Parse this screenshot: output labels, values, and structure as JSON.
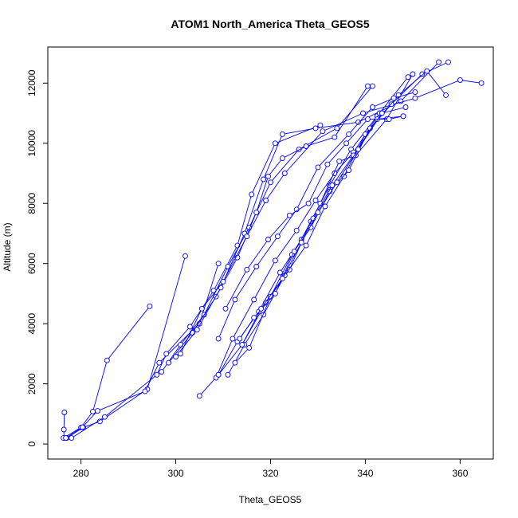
{
  "chart_data": {
    "type": "scatter",
    "title": "ATOM1 North_America Theta_GEOS5",
    "xlabel": "Theta_GEOS5",
    "ylabel": "Altitude (m)",
    "xlim": [
      273,
      367
    ],
    "ylim": [
      -500,
      13200
    ],
    "xticks": [
      280,
      300,
      320,
      340,
      360
    ],
    "yticks": [
      0,
      2000,
      4000,
      6000,
      8000,
      10000,
      12000
    ],
    "grid": false,
    "legend": "none",
    "color": "#0000ff",
    "marker": "open-circle",
    "lines": "connected",
    "series": [
      {
        "x": [
          276.5,
          276.4,
          276.4
        ],
        "y": [
          1050,
          480,
          200
        ]
      },
      {
        "x": [
          277.0,
          280.5,
          284.0,
          294.0,
          302.0
        ],
        "y": [
          200,
          550,
          750,
          1820,
          6250
        ]
      },
      {
        "x": [
          276.3,
          280.0,
          282.5,
          285.5,
          294.5
        ],
        "y": [
          200,
          550,
          1080,
          2780,
          4580
        ]
      },
      {
        "x": [
          276.8,
          280.3,
          283.5,
          293.5,
          296.5,
          305.0,
          309.0
        ],
        "y": [
          200,
          560,
          1100,
          1750,
          2700,
          4000,
          6000
        ]
      },
      {
        "x": [
          278.0,
          285.0,
          296.0,
          298.0,
          303.0,
          308.0,
          313.0,
          316.0,
          321.0,
          330.5
        ],
        "y": [
          200,
          900,
          2300,
          3000,
          3900,
          5100,
          6600,
          8300,
          10000,
          10600
        ]
      },
      {
        "x": [
          297.0,
          301.0,
          306.0,
          311.0,
          315.5,
          320.0,
          326.0,
          334.0,
          341.5
        ],
        "y": [
          2400,
          3300,
          4300,
          5900,
          7200,
          8700,
          9800,
          10500,
          11900
        ]
      },
      {
        "x": [
          298.5,
          303.5,
          308.5,
          313.0,
          317.0,
          319.5,
          322.5,
          327.5,
          333.5,
          340.5
        ],
        "y": [
          2700,
          3700,
          4900,
          6200,
          7700,
          8900,
          9500,
          9900,
          10200,
          11900
        ]
      },
      {
        "x": [
          300.0,
          304.5,
          309.5,
          314.5,
          318.5,
          322.5,
          329.5,
          338.5,
          347.5,
          355.5
        ],
        "y": [
          2900,
          3800,
          5200,
          7000,
          8800,
          10300,
          10500,
          10700,
          11400,
          12700
        ]
      },
      {
        "x": [
          301.0,
          305.5,
          310.0,
          315.0,
          319.0,
          323.0,
          331.0,
          339.5,
          350.5,
          360.0,
          364.5
        ],
        "y": [
          3000,
          4500,
          5400,
          6900,
          8100,
          9000,
          10400,
          11000,
          11500,
          12100,
          12000
        ]
      },
      {
        "x": [
          305.0,
          309.0,
          314.0,
          319.0,
          324.0,
          328.5,
          332.5,
          337.0,
          342.5,
          349.0
        ],
        "y": [
          1600,
          2300,
          3300,
          4700,
          5800,
          7400,
          8600,
          9800,
          10900,
          12200
        ]
      },
      {
        "x": [
          308.5,
          312.0,
          316.5,
          321.0,
          325.5,
          329.5,
          333.5,
          337.5,
          343.0
        ],
        "y": [
          2200,
          3500,
          4800,
          6100,
          7100,
          8100,
          9000,
          9700,
          11000
        ]
      },
      {
        "x": [
          309.0,
          313.0,
          317.5,
          322.0,
          326.5,
          330.5,
          334.5,
          338.0,
          344.5,
          350.0
        ],
        "y": [
          2300,
          3400,
          4400,
          5700,
          6800,
          8000,
          9400,
          9600,
          10800,
          12300
        ]
      },
      {
        "x": [
          311.0,
          314.5,
          318.5,
          323.0,
          327.5,
          331.5,
          335.5,
          340.0,
          345.5,
          352.0,
          357.5
        ],
        "y": [
          2300,
          3300,
          4300,
          5600,
          6600,
          7900,
          8900,
          10300,
          11300,
          12300,
          12700
        ]
      },
      {
        "x": [
          312.5,
          315.5,
          320.0,
          324.5,
          328.5,
          332.5,
          336.5,
          341.0,
          347.0,
          353.0,
          357.0
        ],
        "y": [
          2700,
          3200,
          4900,
          6300,
          7200,
          8400,
          9100,
          10500,
          11600,
          12400,
          11600
        ]
      },
      {
        "x": [
          313.5,
          316.5,
          321.0,
          325.0,
          329.0,
          333.0,
          337.5,
          342.5,
          348.0
        ],
        "y": [
          3500,
          4200,
          5000,
          6400,
          7500,
          8600,
          9600,
          10800,
          10900
        ]
      },
      {
        "x": [
          314.0,
          318.0,
          322.5,
          326.5,
          330.0,
          334.0,
          338.5,
          343.5,
          348.5
        ],
        "y": [
          3300,
          4500,
          5500,
          6700,
          7700,
          8700,
          9800,
          11000,
          11200
        ]
      },
      {
        "x": [
          309.0,
          312.5,
          317.0,
          321.5,
          325.5,
          330.0,
          336.5,
          341.5,
          346.0,
          350.5
        ],
        "y": [
          3500,
          4800,
          5900,
          6900,
          7800,
          9200,
          10300,
          11200,
          11500,
          11700
        ]
      },
      {
        "x": [
          310.5,
          315.0,
          319.5,
          324.0,
          328.0,
          332.0,
          336.0,
          340.5,
          345.0,
          348.0
        ],
        "y": [
          4500,
          5800,
          6800,
          7600,
          8000,
          9300,
          10000,
          10800,
          10800,
          10900
        ]
      }
    ]
  }
}
